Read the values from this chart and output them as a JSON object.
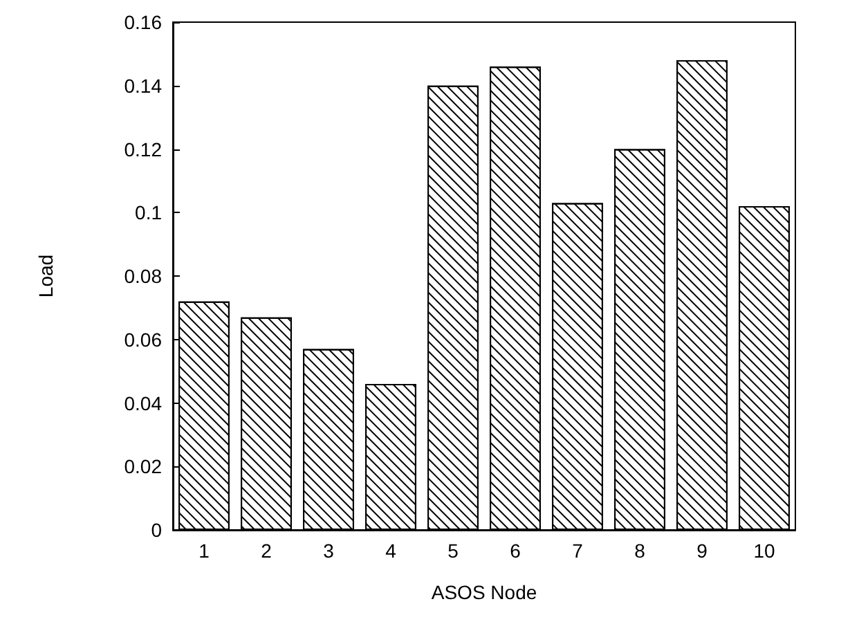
{
  "chart_data": {
    "type": "bar",
    "xlabel": "ASOS Node",
    "ylabel": "Load",
    "categories": [
      "1",
      "2",
      "3",
      "4",
      "5",
      "6",
      "7",
      "8",
      "9",
      "10"
    ],
    "values": [
      0.072,
      0.067,
      0.057,
      0.046,
      0.14,
      0.146,
      0.103,
      0.12,
      0.148,
      0.102
    ],
    "color": "#ffffff",
    "ylim": [
      0,
      0.16
    ],
    "yticks": [
      0,
      0.02,
      0.04,
      0.06,
      0.08,
      0.1,
      0.12,
      0.14,
      0.16
    ],
    "grid": false
  }
}
